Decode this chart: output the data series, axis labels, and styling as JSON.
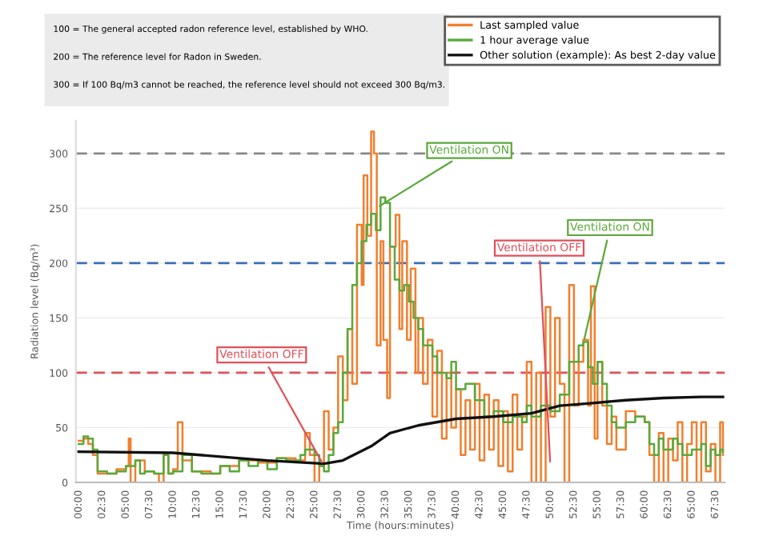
{
  "chart_data": {
    "type": "line",
    "xlabel": "Time (hours:minutes)",
    "ylabel": "Radiation level (Bq/m³)",
    "xlim": [
      -0.3,
      68.5
    ],
    "ylim": [
      0,
      330
    ],
    "xticks": [
      {
        "value": 0,
        "label": "00:00"
      },
      {
        "value": 2.5,
        "label": "02:30"
      },
      {
        "value": 5,
        "label": "05:00"
      },
      {
        "value": 7.5,
        "label": "07:30"
      },
      {
        "value": 10,
        "label": "10:00"
      },
      {
        "value": 12.5,
        "label": "12:30"
      },
      {
        "value": 15,
        "label": "15:00"
      },
      {
        "value": 17.5,
        "label": "17:30"
      },
      {
        "value": 20,
        "label": "20:00"
      },
      {
        "value": 22.5,
        "label": "22:30"
      },
      {
        "value": 25,
        "label": "25:00"
      },
      {
        "value": 27.5,
        "label": "27:30"
      },
      {
        "value": 30,
        "label": "30:00"
      },
      {
        "value": 32.5,
        "label": "32:30"
      },
      {
        "value": 35,
        "label": "35:00"
      },
      {
        "value": 37.5,
        "label": "37:30"
      },
      {
        "value": 40,
        "label": "40:00"
      },
      {
        "value": 42.5,
        "label": "42:30"
      },
      {
        "value": 45,
        "label": "45:00"
      },
      {
        "value": 47.5,
        "label": "47:30"
      },
      {
        "value": 50,
        "label": "50:00"
      },
      {
        "value": 52.5,
        "label": "52:30"
      },
      {
        "value": 55,
        "label": "55:00"
      },
      {
        "value": 57.5,
        "label": "57:30"
      },
      {
        "value": 60,
        "label": "60:00"
      },
      {
        "value": 62.5,
        "label": "62:30"
      },
      {
        "value": 65,
        "label": "65:00"
      },
      {
        "value": 67.5,
        "label": "67:30"
      }
    ],
    "yticks": [
      0,
      50,
      100,
      150,
      200,
      250,
      300
    ],
    "grid": "y",
    "legend": "top right",
    "series": [
      {
        "name": "Last sampled value",
        "type": "step",
        "color": "#f07f2e",
        "x": [
          0,
          0.5,
          1,
          1.5,
          2,
          3,
          4,
          5,
          5.3,
          5.5,
          6,
          7,
          8,
          8.5,
          9,
          9.5,
          10,
          10.5,
          11,
          12,
          14,
          15,
          17,
          19,
          21,
          23,
          24,
          24.5,
          25,
          25.5,
          26,
          26.5,
          27,
          27.5,
          28,
          28.5,
          29,
          29.5,
          30,
          30.2,
          30.6,
          31,
          31.3,
          31.6,
          32,
          32.3,
          32.7,
          33,
          33.6,
          34,
          34.3,
          34.8,
          35.2,
          35.7,
          36,
          36.5,
          37,
          37.5,
          38,
          38.5,
          39,
          39.5,
          40,
          40.5,
          41,
          41.5,
          42,
          42.5,
          43,
          43.5,
          44,
          44.5,
          45,
          45.5,
          46,
          46.5,
          47,
          47.5,
          48,
          48.5,
          49,
          49.5,
          50,
          50.5,
          51,
          51.5,
          52,
          52.5,
          53,
          53.5,
          54,
          54.3,
          54.7,
          55,
          55.5,
          56,
          56.5,
          57,
          58,
          59,
          60,
          60.5,
          61,
          61.5,
          62,
          62.5,
          63,
          63.5,
          64,
          64.5,
          65,
          65.5,
          66,
          66.5,
          67,
          67.5,
          68,
          68.3
        ],
        "values": [
          38,
          40,
          35,
          25,
          8,
          8,
          12,
          15,
          40,
          0,
          20,
          10,
          8,
          0,
          25,
          8,
          12,
          55,
          20,
          10,
          8,
          15,
          20,
          18,
          22,
          20,
          45,
          25,
          0,
          15,
          65,
          30,
          50,
          115,
          75,
          140,
          90,
          235,
          180,
          280,
          225,
          320,
          300,
          125,
          220,
          130,
          77,
          215,
          244,
          140,
          220,
          130,
          195,
          100,
          150,
          90,
          130,
          60,
          120,
          40,
          100,
          50,
          85,
          25,
          75,
          30,
          90,
          20,
          80,
          30,
          75,
          15,
          65,
          10,
          80,
          30,
          60,
          110,
          0,
          100,
          0,
          160,
          60,
          150,
          90,
          0,
          180,
          70,
          110,
          130,
          70,
          179,
          40,
          110,
          70,
          35,
          60,
          30,
          65,
          60,
          55,
          25,
          0,
          45,
          0,
          40,
          20,
          55,
          0,
          35,
          55,
          0,
          55,
          10,
          35,
          0,
          55,
          25
        ]
      },
      {
        "name": "1 hour average value",
        "type": "step",
        "color": "#5aa83a",
        "x": [
          0,
          0.5,
          1,
          1.5,
          2,
          3,
          4,
          5,
          6,
          6.5,
          7,
          8,
          9,
          9.5,
          10,
          11,
          12,
          13,
          14,
          15,
          16,
          17,
          18,
          19,
          20,
          21,
          22,
          23,
          23.5,
          24,
          25,
          25.5,
          26,
          26.5,
          27,
          27.5,
          28,
          28.5,
          29,
          29.5,
          30,
          30.5,
          31,
          31.5,
          32,
          32.5,
          33,
          33.5,
          34,
          34.5,
          35,
          35.5,
          36,
          36.5,
          37,
          37.5,
          38,
          39,
          39.5,
          40,
          41,
          42,
          43,
          44,
          45,
          46,
          47,
          47.5,
          48,
          49,
          50,
          51,
          52,
          53,
          53.5,
          54,
          54.5,
          55,
          55.5,
          56,
          56.5,
          57,
          58,
          59,
          60,
          60.5,
          61,
          61.5,
          62,
          63,
          63.5,
          64,
          65,
          66,
          66.5,
          67,
          67.5,
          68,
          68.3
        ],
        "values": [
          35,
          42,
          40,
          30,
          10,
          8,
          10,
          15,
          20,
          8,
          10,
          8,
          25,
          8,
          10,
          25,
          10,
          8,
          8,
          15,
          10,
          20,
          15,
          20,
          12,
          22,
          20,
          20,
          25,
          30,
          25,
          15,
          10,
          25,
          45,
          55,
          100,
          140,
          180,
          200,
          220,
          235,
          245,
          230,
          260,
          255,
          215,
          185,
          175,
          180,
          165,
          150,
          140,
          125,
          125,
          115,
          100,
          95,
          110,
          85,
          90,
          75,
          60,
          65,
          55,
          60,
          55,
          70,
          60,
          70,
          65,
          80,
          110,
          125,
          128,
          105,
          90,
          110,
          90,
          70,
          55,
          50,
          55,
          60,
          55,
          35,
          25,
          40,
          30,
          40,
          35,
          25,
          30,
          35,
          15,
          30,
          25,
          30,
          28
        ]
      },
      {
        "name": "Other solution (example): As best 2-day value",
        "color": "#111111",
        "x": [
          0,
          10,
          20,
          26,
          28,
          31,
          33,
          36,
          40,
          44,
          48,
          51,
          54,
          58,
          62,
          66,
          68.3
        ],
        "values": [
          28,
          27,
          20,
          17,
          20,
          33,
          45,
          52,
          58,
          60,
          63,
          70,
          72,
          75,
          77,
          78,
          78
        ]
      }
    ],
    "ref_lines": [
      {
        "axis": "y",
        "value": 100,
        "color": "#e0505a",
        "line_style": "dashed"
      },
      {
        "axis": "y",
        "value": 200,
        "color": "#3a6eb5",
        "line_style": "dashed"
      },
      {
        "axis": "y",
        "value": 300,
        "color": "#888888",
        "line_style": "dashed"
      }
    ],
    "annotations": [
      "100 = The general accepted radon reference level, established by WHO.",
      "200 = The reference level for Radon in Sweden.",
      "300 = If 100 Bq/m3 cannot be reached, the reference level should not exceed 300 Bq/m3.",
      {
        "text": "Ventilation OFF",
        "x": 26,
        "y": 15
      },
      {
        "text": "Ventilation ON",
        "x": 31.5,
        "y": 250
      },
      {
        "text": "Ventilation OFF",
        "x": 50,
        "y": 15
      },
      {
        "text": "Ventilation ON",
        "x": 53.5,
        "y": 127
      }
    ]
  }
}
